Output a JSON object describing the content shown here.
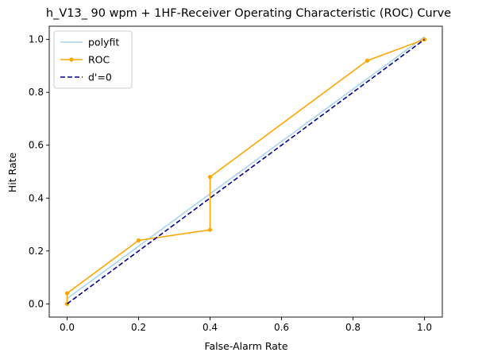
{
  "chart_data": {
    "type": "line",
    "title": "h_V13_ 90 wpm + 1HF-Receiver Operating Characteristic (ROC) Curve",
    "xlabel": "False-Alarm Rate",
    "ylabel": "Hit Rate",
    "xlim": [
      -0.05,
      1.05
    ],
    "ylim": [
      -0.05,
      1.05
    ],
    "xticks": [
      0.0,
      0.2,
      0.4,
      0.6,
      0.8,
      1.0
    ],
    "xtick_labels": [
      "0.0",
      "0.2",
      "0.4",
      "0.6",
      "0.8",
      "1.0"
    ],
    "yticks": [
      0.0,
      0.2,
      0.4,
      0.6,
      0.8,
      1.0
    ],
    "ytick_labels": [
      "0.0",
      "0.2",
      "0.4",
      "0.6",
      "0.8",
      "1.0"
    ],
    "grid": false,
    "legend_position": "upper-left",
    "series": [
      {
        "name": "polyfit",
        "color": "#a6d5ec",
        "style": "solid",
        "marker": "none",
        "x": [
          0.0,
          1.0
        ],
        "y": [
          0.02,
          1.01
        ]
      },
      {
        "name": "ROC",
        "color": "#ffa500",
        "style": "solid",
        "marker": "dot",
        "x": [
          0.0,
          0.0,
          0.2,
          0.4,
          0.4,
          0.84,
          1.0
        ],
        "y": [
          0.0,
          0.04,
          0.24,
          0.28,
          0.48,
          0.92,
          1.0
        ]
      },
      {
        "name": "d'=0",
        "color": "#00008b",
        "style": "dashed",
        "marker": "none",
        "x": [
          0.0,
          1.0
        ],
        "y": [
          0.0,
          1.0
        ]
      }
    ]
  }
}
